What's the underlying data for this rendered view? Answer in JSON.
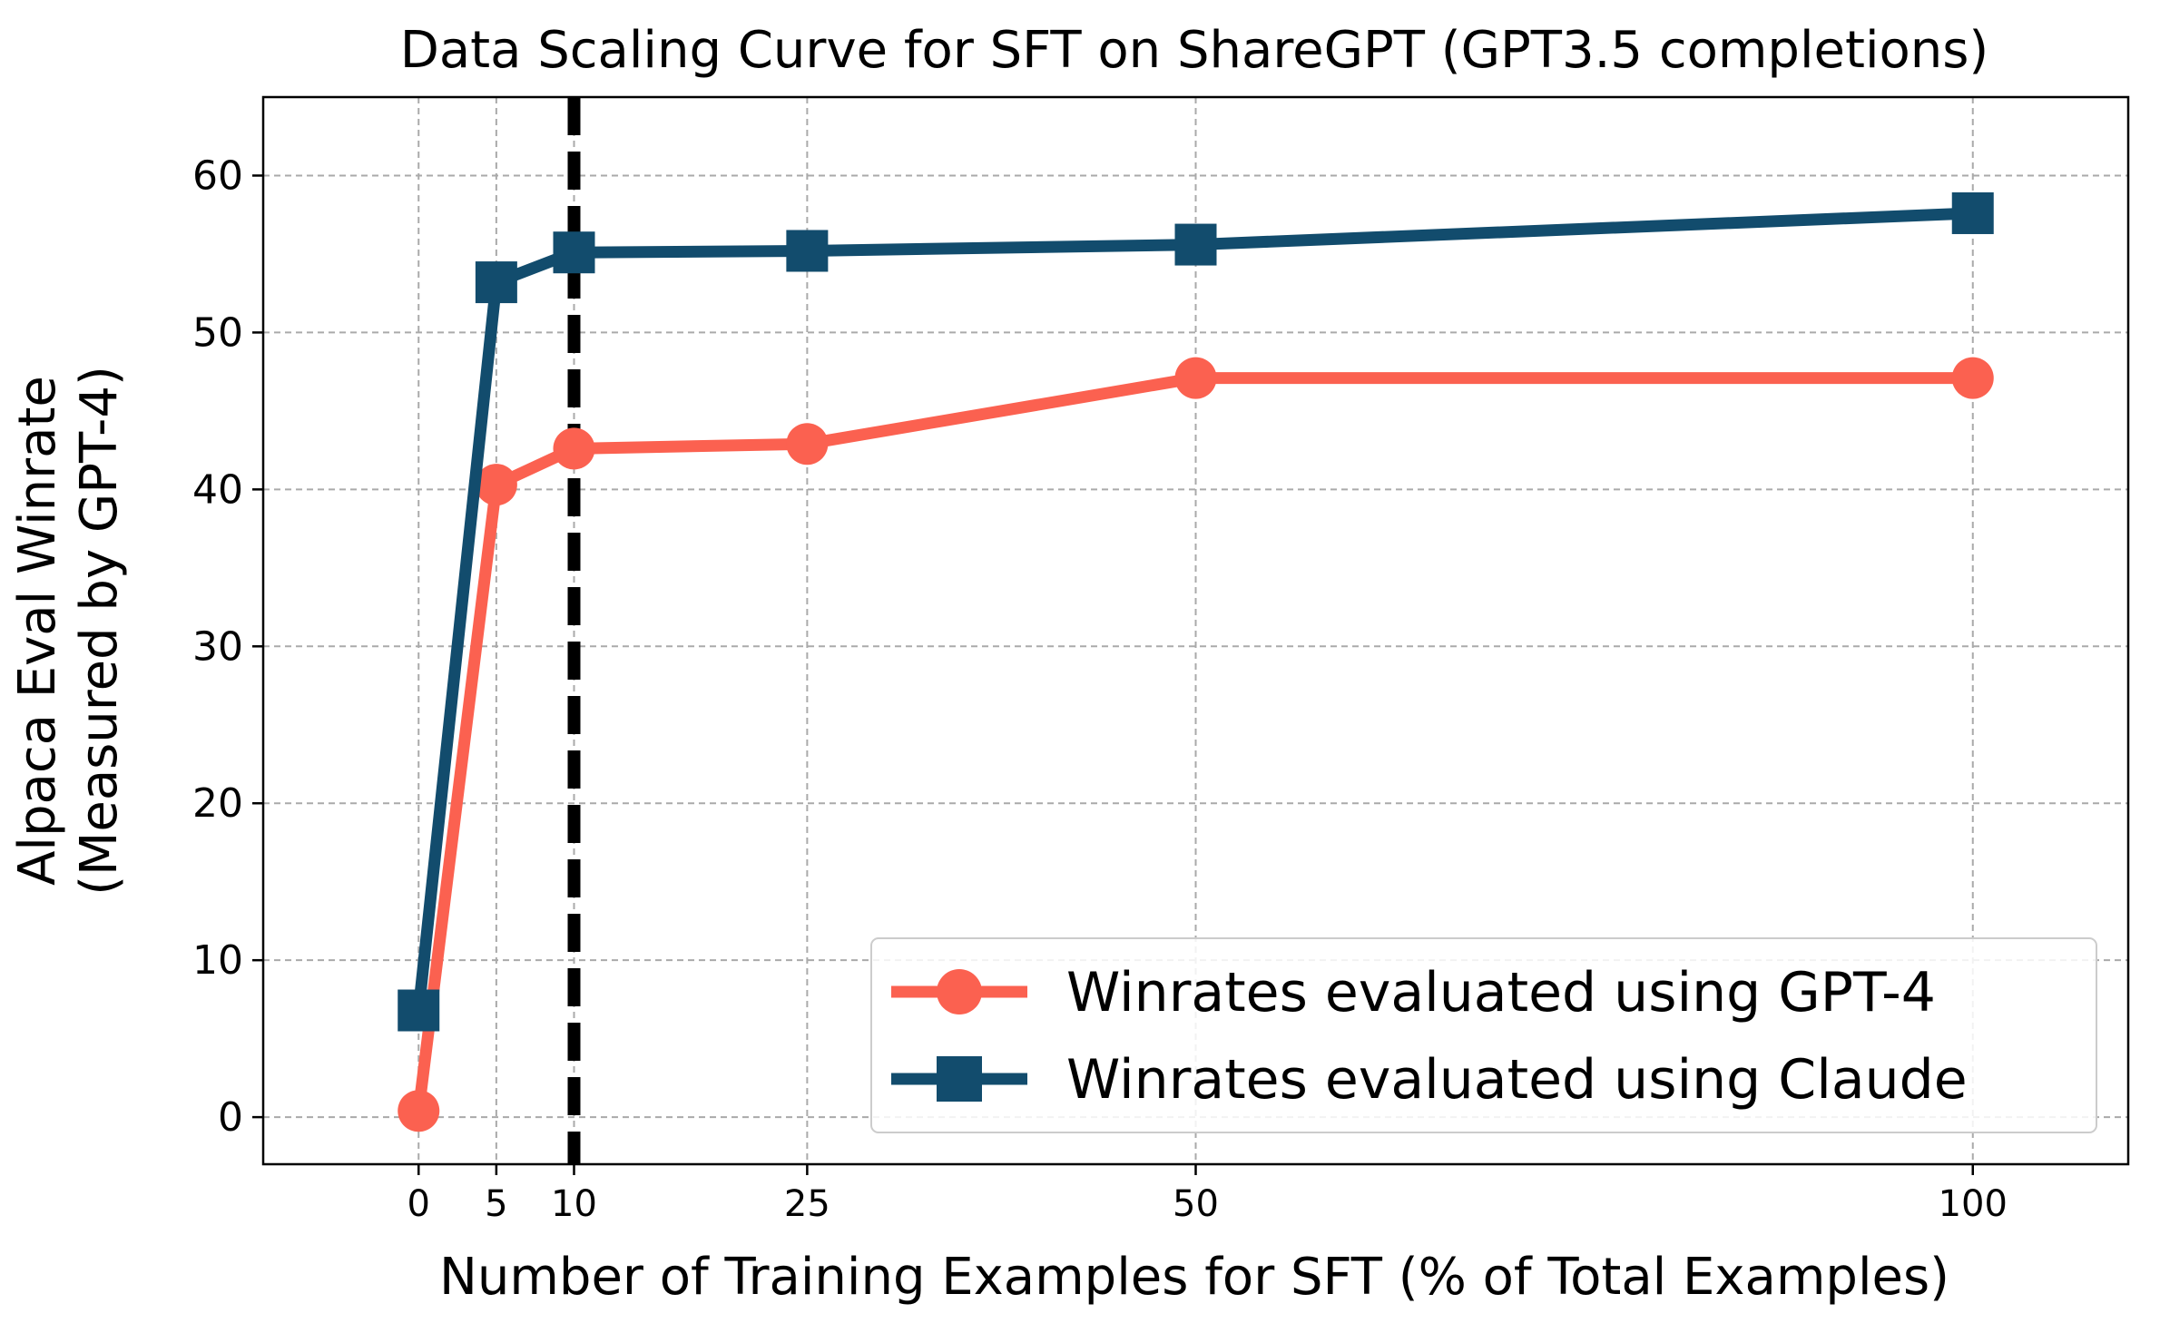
{
  "chart_data": {
    "type": "line",
    "title": "Data Scaling Curve for SFT on ShareGPT (GPT3.5 completions)",
    "xlabel": "Number of Training Examples for SFT (% of Total Examples)",
    "ylabel_lines": [
      "Alpaca Eval Winrate",
      "(Measured by GPT-4)"
    ],
    "xlim": [
      -10,
      110
    ],
    "ylim": [
      -3,
      65
    ],
    "xticks": [
      0,
      5,
      10,
      25,
      50,
      100
    ],
    "yticks": [
      0,
      10,
      20,
      30,
      40,
      50,
      60
    ],
    "x": [
      0,
      5,
      10,
      25,
      50,
      100
    ],
    "grid": true,
    "legend_position": "lower-right",
    "vline": {
      "x": 10,
      "style": "dashed",
      "color": "#000000"
    },
    "series": [
      {
        "name": "Winrates evaluated using GPT-4",
        "values": [
          0.4,
          40.3,
          42.6,
          42.9,
          47.1,
          47.1
        ],
        "color": "#fb6150",
        "marker": "circle"
      },
      {
        "name": "Winrates evaluated using Claude",
        "values": [
          6.8,
          53.2,
          55.1,
          55.2,
          55.6,
          57.6
        ],
        "color": "#124c6d",
        "marker": "square"
      }
    ]
  }
}
